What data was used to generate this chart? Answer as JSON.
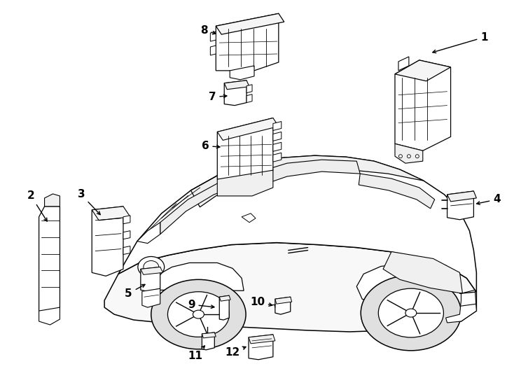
{
  "background_color": "#ffffff",
  "fig_width": 7.34,
  "fig_height": 5.4,
  "dpi": 100,
  "label_fontsize": 11,
  "arrow_lw": 1.0,
  "car": {
    "body_color": "#ffffff",
    "edge_color": "#000000",
    "lw": 1.0
  },
  "parts": {
    "color": "#ffffff",
    "edge_color": "#000000",
    "lw": 0.8
  }
}
